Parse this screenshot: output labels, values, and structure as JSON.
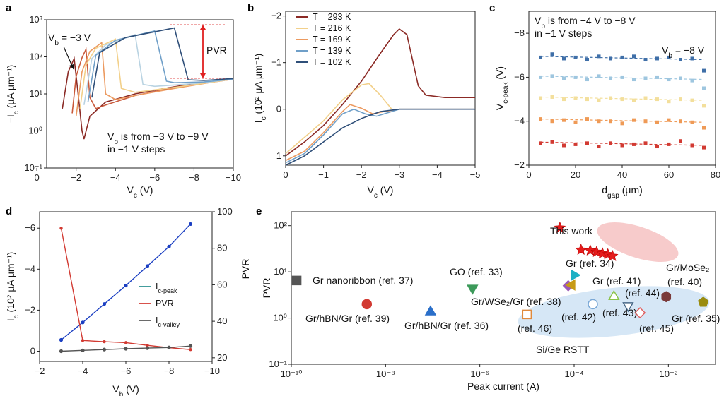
{
  "panels": {
    "a": {
      "label": "a"
    },
    "b": {
      "label": "b"
    },
    "c": {
      "label": "c"
    },
    "d": {
      "label": "d"
    },
    "e": {
      "label": "e"
    }
  },
  "chart_data": [
    {
      "id": "a",
      "type": "line",
      "xlabel": "V_c (V)",
      "ylabel": "−I_c (μA μm⁻¹)",
      "xlim": [
        -0.5,
        -10
      ],
      "ylim": [
        0.1,
        1000
      ],
      "yscale": "log",
      "xticks": [
        "0",
        "−2",
        "−4",
        "−6",
        "−8",
        "−10"
      ],
      "xtick_values": [
        0,
        -2,
        -4,
        -6,
        -8,
        -10
      ],
      "yticks": [
        "10⁻¹",
        "10⁰",
        "10¹",
        "10²",
        "10³"
      ],
      "ytick_values": [
        0.1,
        1,
        10,
        100,
        1000
      ],
      "annotations": {
        "vb_label": "V_b = −3 V",
        "pvr_label": "PVR",
        "steps_line1": "V_b is from −3 V to −9 V",
        "steps_line2": "in −1 V steps"
      },
      "series": [
        {
          "color": "#8b2a25",
          "points": [
            [
              -1.3,
              4
            ],
            [
              -1.6,
              40
            ],
            [
              -1.9,
              90
            ],
            [
              -2.1,
              10
            ],
            [
              -2.3,
              1
            ],
            [
              -2.4,
              0.6
            ],
            [
              -2.7,
              2.5
            ],
            [
              -3.5,
              6
            ],
            [
              -5,
              10
            ],
            [
              -6.5,
              14
            ],
            [
              -8,
              19
            ],
            [
              -9.5,
              23
            ],
            [
              -10,
              25
            ]
          ]
        },
        {
          "color": "#c95a3b",
          "points": [
            [
              -1.8,
              3
            ],
            [
              -2.0,
              30
            ],
            [
              -2.3,
              95
            ],
            [
              -2.5,
              160
            ],
            [
              -2.7,
              8
            ],
            [
              -3.0,
              4
            ],
            [
              -3.5,
              5
            ],
            [
              -5,
              9
            ],
            [
              -7,
              15
            ],
            [
              -9,
              21
            ],
            [
              -10,
              25
            ]
          ]
        },
        {
          "color": "#ec9a60",
          "points": [
            [
              -2.0,
              2.5
            ],
            [
              -2.3,
              40
            ],
            [
              -2.7,
              140
            ],
            [
              -3.3,
              240
            ],
            [
              -3.5,
              10
            ],
            [
              -4,
              7
            ],
            [
              -5,
              9
            ],
            [
              -7,
              14
            ],
            [
              -9,
              21
            ],
            [
              -10,
              25
            ]
          ]
        },
        {
          "color": "#f2d08a",
          "points": [
            [
              -2.2,
              4
            ],
            [
              -2.5,
              60
            ],
            [
              -3,
              170
            ],
            [
              -4,
              300
            ],
            [
              -4.3,
              14
            ],
            [
              -5,
              11
            ],
            [
              -7,
              15
            ],
            [
              -9,
              21
            ],
            [
              -10,
              25
            ]
          ]
        },
        {
          "color": "#b9d3e2",
          "points": [
            [
              -2.4,
              5
            ],
            [
              -2.8,
              90
            ],
            [
              -3.5,
              210
            ],
            [
              -5,
              400
            ],
            [
              -5.4,
              18
            ],
            [
              -6,
              16
            ],
            [
              -8,
              19
            ],
            [
              -10,
              25
            ]
          ]
        },
        {
          "color": "#6f9fc8",
          "points": [
            [
              -2.6,
              6
            ],
            [
              -3.0,
              110
            ],
            [
              -4,
              280
            ],
            [
              -6,
              500
            ],
            [
              -6.6,
              22
            ],
            [
              -7,
              20
            ],
            [
              -8.5,
              21
            ],
            [
              -10,
              25
            ]
          ]
        },
        {
          "color": "#2f4f79",
          "points": [
            [
              -2.8,
              8
            ],
            [
              -3.2,
              130
            ],
            [
              -4.5,
              330
            ],
            [
              -7,
              600
            ],
            [
              -7.7,
              24
            ],
            [
              -8.5,
              23
            ],
            [
              -10,
              26
            ]
          ]
        }
      ]
    },
    {
      "id": "b",
      "type": "line",
      "xlabel": "V_c (V)",
      "ylabel": "I_c (10² μA μm⁻¹)",
      "xlim": [
        0,
        -5
      ],
      "ylim": [
        1.2,
        -2.1
      ],
      "xticks": [
        "0",
        "−1",
        "−2",
        "−3",
        "−4",
        "−5"
      ],
      "xtick_values": [
        0,
        -1,
        -2,
        -3,
        -4,
        -5
      ],
      "yticks": [
        "1",
        "0",
        "−1",
        "−2"
      ],
      "ytick_values": [
        1,
        0,
        -1,
        -2
      ],
      "legend": [
        "T = 293 K",
        "T = 216 K",
        "T = 169 K",
        "T = 139 K",
        "T = 102 K"
      ],
      "legend_position": "top-left",
      "series": [
        {
          "name": "T = 293 K",
          "color": "#8b2a25",
          "points": [
            [
              0,
              1.0
            ],
            [
              -0.5,
              0.7
            ],
            [
              -1,
              0.35
            ],
            [
              -1.5,
              -0.1
            ],
            [
              -2,
              -0.6
            ],
            [
              -2.5,
              -1.2
            ],
            [
              -2.85,
              -1.6
            ],
            [
              -3.0,
              -1.72
            ],
            [
              -3.2,
              -1.6
            ],
            [
              -3.5,
              -0.5
            ],
            [
              -3.7,
              -0.3
            ],
            [
              -4.2,
              -0.25
            ],
            [
              -5,
              -0.25
            ]
          ]
        },
        {
          "name": "T = 216 K",
          "color": "#f2d08a",
          "points": [
            [
              0,
              0.95
            ],
            [
              -0.5,
              0.6
            ],
            [
              -1,
              0.25
            ],
            [
              -1.5,
              -0.2
            ],
            [
              -2,
              -0.52
            ],
            [
              -2.2,
              -0.55
            ],
            [
              -2.5,
              -0.3
            ],
            [
              -2.8,
              0
            ]
          ]
        },
        {
          "name": "T = 169 K",
          "color": "#ec9a60",
          "points": [
            [
              0,
              1.1
            ],
            [
              -0.5,
              0.9
            ],
            [
              -1,
              0.5
            ],
            [
              -1.5,
              0.05
            ],
            [
              -1.7,
              -0.1
            ],
            [
              -2.0,
              -0.02
            ],
            [
              -2.3,
              0.1
            ],
            [
              -2.6,
              0.05
            ],
            [
              -3,
              0
            ],
            [
              -5,
              0
            ]
          ]
        },
        {
          "name": "T = 139 K",
          "color": "#6f9fc8",
          "points": [
            [
              0,
              1.15
            ],
            [
              -0.5,
              0.95
            ],
            [
              -1,
              0.55
            ],
            [
              -1.5,
              0.1
            ],
            [
              -1.8,
              0.0
            ],
            [
              -2.1,
              0.1
            ],
            [
              -2.4,
              0.15
            ],
            [
              -2.8,
              0.05
            ],
            [
              -3,
              0
            ],
            [
              -5,
              0
            ]
          ]
        },
        {
          "name": "T = 102 K",
          "color": "#2f4f79",
          "points": [
            [
              0,
              1.2
            ],
            [
              -0.5,
              1.0
            ],
            [
              -1,
              0.7
            ],
            [
              -1.5,
              0.4
            ],
            [
              -2,
              0.2
            ],
            [
              -2.5,
              0.05
            ],
            [
              -3,
              0
            ],
            [
              -5,
              0
            ]
          ]
        }
      ]
    },
    {
      "id": "c",
      "type": "scatter",
      "xlabel": "d_gap (μm)",
      "ylabel": "V_c-peak (V)",
      "xlim": [
        0,
        80
      ],
      "ylim": [
        -2,
        -9
      ],
      "xticks": [
        "0",
        "20",
        "40",
        "60",
        "80"
      ],
      "xtick_values": [
        0,
        20,
        40,
        60,
        80
      ],
      "yticks": [
        "−2",
        "−4",
        "−6",
        "−8"
      ],
      "ytick_values": [
        -2,
        -4,
        -6,
        -8
      ],
      "annotations": {
        "line1": "V_b is from −4 V to −8 V",
        "line2": "in −1 V steps",
        "vb_label": "V_b = −8 V"
      },
      "x": [
        5,
        10,
        15,
        20,
        25,
        30,
        35,
        40,
        45,
        50,
        55,
        60,
        65,
        70,
        75
      ],
      "series": [
        {
          "color": "#d23a32",
          "fit": [
            -3.05,
            -2.9
          ],
          "values": [
            -3.0,
            -3.05,
            -2.9,
            -2.95,
            -3.0,
            -2.85,
            -3.0,
            -2.9,
            -2.95,
            -3.0,
            -2.85,
            -2.95,
            -3.1,
            -2.9,
            -2.8
          ]
        },
        {
          "color": "#ef9a56",
          "fit": [
            -4.1,
            -3.95
          ],
          "values": [
            -4.1,
            -4.0,
            -4.05,
            -3.95,
            -4.1,
            -4.0,
            -4.0,
            -3.9,
            -4.05,
            -4.0,
            -3.95,
            -4.05,
            -4.0,
            -3.95,
            -3.7
          ]
        },
        {
          "color": "#f3df9c",
          "fit": [
            -5.1,
            -4.95
          ],
          "values": [
            -5.05,
            -5.1,
            -5.0,
            -5.05,
            -5.0,
            -4.95,
            -5.05,
            -5.0,
            -4.95,
            -5.05,
            -5.0,
            -4.9,
            -5.0,
            -4.95,
            -4.7
          ]
        },
        {
          "color": "#9ec6df",
          "fit": [
            -6.05,
            -5.9
          ],
          "values": [
            -6.0,
            -6.05,
            -5.95,
            -6.0,
            -5.9,
            -6.05,
            -5.95,
            -6.0,
            -5.9,
            -5.95,
            -6.0,
            -5.9,
            -5.95,
            -5.85,
            -5.5
          ]
        },
        {
          "color": "#3f6fa8",
          "fit": [
            -6.95,
            -6.8
          ],
          "values": [
            -6.9,
            -7.05,
            -6.85,
            -6.9,
            -6.8,
            -6.95,
            -6.85,
            -6.9,
            -6.95,
            -6.8,
            -6.85,
            -6.9,
            -6.8,
            -6.85,
            -6.3
          ]
        }
      ]
    },
    {
      "id": "d",
      "type": "line",
      "xlabel": "V_b (V)",
      "ylabel": "I_c (10² μA μm⁻¹)",
      "y2label": "PVR",
      "xlim": [
        -2,
        -10
      ],
      "ylim": [
        0.5,
        -6.8
      ],
      "y2lim": [
        18,
        100
      ],
      "xticks": [
        "−2",
        "−4",
        "−6",
        "−8",
        "−10"
      ],
      "xtick_values": [
        -2,
        -4,
        -6,
        -8,
        -10
      ],
      "yticks": [
        "0",
        "−2",
        "−4",
        "−6"
      ],
      "ytick_values": [
        0,
        -2,
        -4,
        -6
      ],
      "y2ticks": [
        "20",
        "40",
        "60",
        "80",
        "100"
      ],
      "y2tick_values": [
        20,
        40,
        60,
        80,
        100
      ],
      "legend": [
        "I_c-peak",
        "PVR",
        "I_c-valley"
      ],
      "legend_colors": [
        "#2a8f8f",
        "#d23a32",
        "#555555"
      ],
      "legend_position": "center-right",
      "x": [
        -3,
        -4,
        -5,
        -6,
        -7,
        -8,
        -9
      ],
      "series": [
        {
          "name": "I_c-peak",
          "color": "#1b3fc2",
          "axis": "left",
          "values": [
            -0.55,
            -1.4,
            -2.3,
            -3.2,
            -4.15,
            -5.1,
            -6.2
          ]
        },
        {
          "name": "PVR",
          "color": "#d23a32",
          "axis": "right",
          "values": [
            91,
            29.5,
            28.8,
            28.3,
            26.8,
            25.5,
            24.5
          ]
        },
        {
          "name": "I_c-valley",
          "color": "#555555",
          "axis": "left",
          "values": [
            0.0,
            -0.04,
            -0.08,
            -0.12,
            -0.15,
            -0.18,
            -0.25
          ]
        }
      ]
    },
    {
      "id": "e",
      "type": "scatter",
      "xlabel": "Peak current (A)",
      "ylabel": "PVR",
      "xscale": "log",
      "yscale": "log",
      "xlim": [
        1e-10,
        0.1
      ],
      "ylim": [
        0.1,
        200
      ],
      "xticks": [
        "10⁻¹⁰",
        "10⁻⁸",
        "10⁻⁶",
        "10⁻⁴",
        "10⁻²"
      ],
      "xtick_values": [
        1e-10,
        1e-08,
        1e-06,
        0.0001,
        0.01
      ],
      "yticks": [
        "10⁻¹",
        "10⁰",
        "10¹",
        "10²"
      ],
      "ytick_values": [
        0.1,
        1,
        10,
        100
      ],
      "annotations": {
        "this_work": "This work",
        "rstt": "Si/Ge RSTT"
      },
      "this_work": [
        {
          "x": 5e-05,
          "y": 90
        },
        {
          "x": 0.00014,
          "y": 30
        },
        {
          "x": 0.00022,
          "y": 29
        },
        {
          "x": 0.0003,
          "y": 27
        },
        {
          "x": 0.0004,
          "y": 25
        },
        {
          "x": 0.00052,
          "y": 24
        },
        {
          "x": 0.00065,
          "y": 22
        }
      ],
      "points": [
        {
          "label": "Gr nanoribbon (ref. 37)",
          "x": 1.3e-10,
          "y": 6.5,
          "shape": "square",
          "color": "#555555",
          "filled": true
        },
        {
          "label": "Gr/hBN/Gr (ref. 39)",
          "x": 4e-09,
          "y": 2.0,
          "shape": "circle",
          "color": "#d23a32",
          "filled": true
        },
        {
          "label": "Gr/hBN/Gr (ref. 36)",
          "x": 9e-08,
          "y": 1.4,
          "shape": "triangle-up",
          "color": "#2a6fc9",
          "filled": true
        },
        {
          "label": "GO (ref. 33)",
          "x": 7e-07,
          "y": 4.3,
          "shape": "triangle-down",
          "color": "#3c9a5a",
          "filled": true
        },
        {
          "label": "Gr/WSe₂/Gr (ref. 38)",
          "x": 7.5e-05,
          "y": 5.0,
          "shape": "diamond",
          "color": "#9b59b6",
          "filled": true
        },
        {
          "label": "Gr (ref. 41)",
          "x": 9e-05,
          "y": 5.2,
          "shape": "triangle-left",
          "color": "#c79a16",
          "filled": true
        },
        {
          "label": "Gr (ref. 34)",
          "x": 0.0001,
          "y": 8.5,
          "shape": "triangle-right",
          "color": "#1cb0c4",
          "filled": true
        },
        {
          "label": "(ref. 46)",
          "x": 1e-05,
          "y": 1.2,
          "shape": "square",
          "color": "#e08a3c",
          "filled": false
        },
        {
          "label": "(ref. 42)",
          "x": 0.00025,
          "y": 2.0,
          "shape": "circle",
          "color": "#7aa8d6",
          "filled": false
        },
        {
          "label": "(ref. 44)",
          "x": 0.0007,
          "y": 3.0,
          "shape": "triangle-up",
          "color": "#8bc34a",
          "filled": false
        },
        {
          "label": "(ref. 43)",
          "x": 0.0014,
          "y": 1.8,
          "shape": "triangle-down",
          "color": "#4a6a88",
          "filled": false
        },
        {
          "label": "(ref. 45)",
          "x": 0.0025,
          "y": 1.3,
          "shape": "diamond",
          "color": "#e06060",
          "filled": false
        },
        {
          "label": "Gr/MoSe₂ (ref. 40)",
          "x": 0.009,
          "y": 2.9,
          "shape": "hexagon",
          "color": "#7a3a3a",
          "filled": true
        },
        {
          "label": "Gr (ref. 35)",
          "x": 0.055,
          "y": 2.2,
          "shape": "pentagon",
          "color": "#9a8c10",
          "filled": true
        }
      ]
    }
  ]
}
